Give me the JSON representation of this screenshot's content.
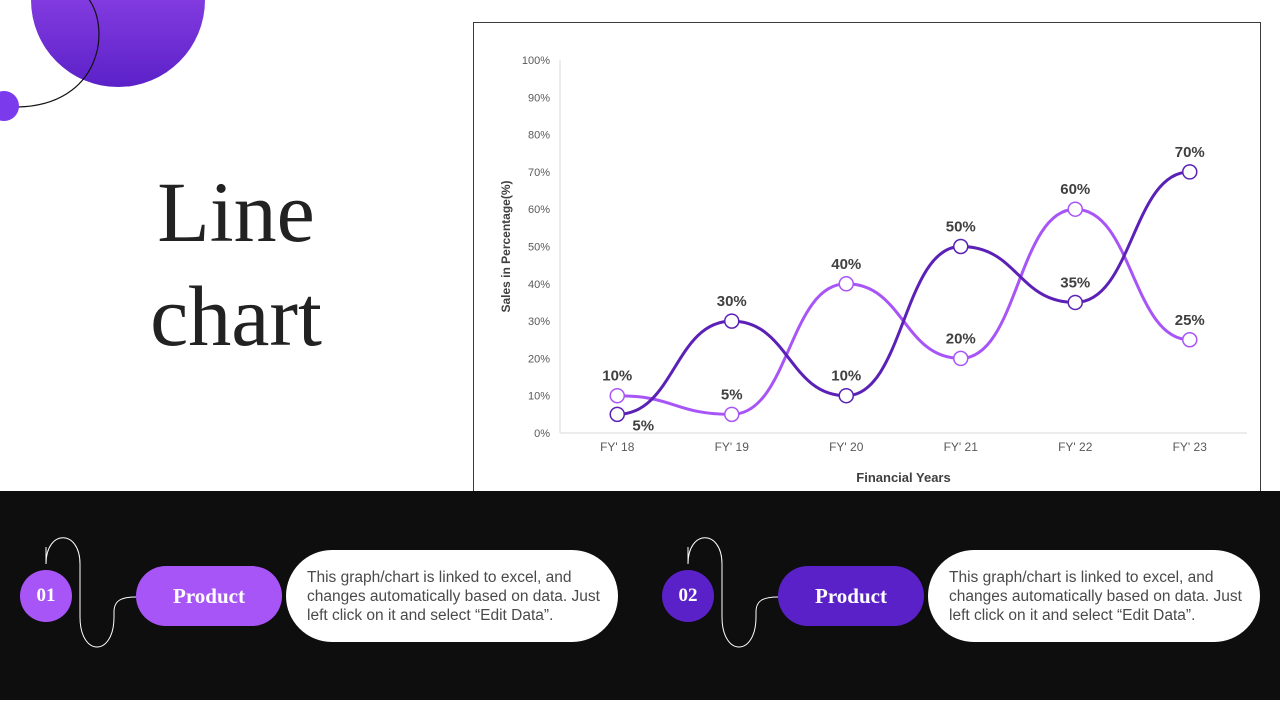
{
  "slide": {
    "title_line1": "Line",
    "title_line2": "chart"
  },
  "colors": {
    "series_primary": "#5b21b6",
    "series_secondary": "#a855f7",
    "accent_gradient_top": "#a855f7",
    "accent_gradient_bottom": "#5b21c8",
    "footer_bg": "#0e0e0e"
  },
  "chart_data": {
    "type": "line",
    "categories": [
      "FY' 18",
      "FY' 19",
      "FY' 20",
      "FY' 21",
      "FY' 22",
      "FY' 23"
    ],
    "series": [
      {
        "values": [
          5,
          30,
          10,
          50,
          35,
          70
        ],
        "labels": [
          "5%",
          "30%",
          "10%",
          "50%",
          "35%",
          "70%"
        ],
        "color": "#5b21b6"
      },
      {
        "values": [
          10,
          5,
          40,
          20,
          60,
          25
        ],
        "labels": [
          "10%",
          "5%",
          "40%",
          "20%",
          "60%",
          "25%"
        ],
        "color": "#a855f7"
      }
    ],
    "ylim": [
      0,
      100
    ],
    "yticks": [
      "0%",
      "10%",
      "20%",
      "30%",
      "40%",
      "50%",
      "60%",
      "70%",
      "80%",
      "90%",
      "100%"
    ],
    "xlabel": "Financial Years",
    "ylabel": "Sales in Percentage(%)",
    "grid": false,
    "smooth": true
  },
  "footer": {
    "items": [
      {
        "number": "01",
        "label": "Product",
        "text": "This graph/chart is linked to excel, and changes automatically based on data. Just left click on it and select “Edit Data”.",
        "color": "#a855f7"
      },
      {
        "number": "02",
        "label": "Product",
        "text": "This graph/chart is linked to excel, and changes automatically based on data. Just left click on it and select “Edit Data”.",
        "color": "#5b21c8"
      }
    ]
  }
}
